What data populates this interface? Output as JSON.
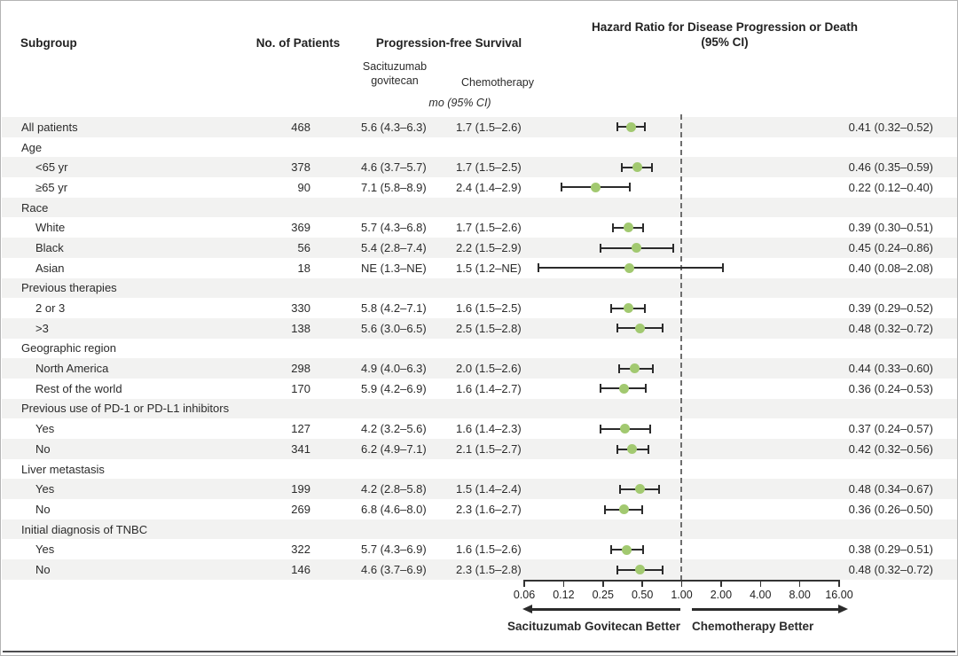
{
  "colors": {
    "marker_green": "#a2c970",
    "ci_bar": "#2b2b2b",
    "row_shade": "#f2f2f1",
    "reference_dash": "#6e6e6e"
  },
  "headers": {
    "subgroup": "Subgroup",
    "patients": "No. of Patients",
    "pfs": "Progression-free Survival",
    "hazard": "Hazard Ratio for Disease Progression or Death (95% CI)",
    "arm_sg": "Sacituzumab govitecan",
    "arm_chemo": "Chemotherapy",
    "units": "mo (95% CI)"
  },
  "chart_data": {
    "type": "scatter",
    "subtype": "forest-plot",
    "x_scale": "log2",
    "x_ticks": {
      "labels": [
        "0.06",
        "0.12",
        "0.25",
        "0.50",
        "1.00",
        "2.00",
        "4.00",
        "8.00",
        "16.00"
      ],
      "values": [
        0.0625,
        0.125,
        0.25,
        0.5,
        1,
        2,
        4,
        8,
        16
      ]
    },
    "reference_line": 1.0,
    "arrow_left_label": "Sacituzumab Govitecan Better",
    "arrow_right_label": "Chemotherapy Better",
    "rows": [
      {
        "type": "data",
        "indent": false,
        "label": "All patients",
        "patients": "468",
        "sg": "5.6 (4.3–6.3)",
        "chemo": "1.7 (1.5–2.6)",
        "hr_text": "0.41 (0.32–0.52)",
        "hr": 0.41,
        "lo": 0.32,
        "hi": 0.52
      },
      {
        "type": "group",
        "indent": false,
        "label": "Age"
      },
      {
        "type": "data",
        "indent": true,
        "label": "<65 yr",
        "patients": "378",
        "sg": "4.6 (3.7–5.7)",
        "chemo": "1.7 (1.5–2.5)",
        "hr_text": "0.46 (0.35–0.59)",
        "hr": 0.46,
        "lo": 0.35,
        "hi": 0.59
      },
      {
        "type": "data",
        "indent": true,
        "label": "≥65 yr",
        "patients": "90",
        "sg": "7.1 (5.8–8.9)",
        "chemo": "2.4 (1.4–2.9)",
        "hr_text": "0.22 (0.12–0.40)",
        "hr": 0.22,
        "lo": 0.12,
        "hi": 0.4
      },
      {
        "type": "group",
        "indent": false,
        "label": "Race"
      },
      {
        "type": "data",
        "indent": true,
        "label": "White",
        "patients": "369",
        "sg": "5.7 (4.3–6.8)",
        "chemo": "1.7 (1.5–2.6)",
        "hr_text": "0.39 (0.30–0.51)",
        "hr": 0.39,
        "lo": 0.3,
        "hi": 0.51
      },
      {
        "type": "data",
        "indent": true,
        "label": "Black",
        "patients": "56",
        "sg": "5.4 (2.8–7.4)",
        "chemo": "2.2 (1.5–2.9)",
        "hr_text": "0.45 (0.24–0.86)",
        "hr": 0.45,
        "lo": 0.24,
        "hi": 0.86
      },
      {
        "type": "data",
        "indent": true,
        "label": "Asian",
        "patients": "18",
        "sg": "NE (1.3–NE)",
        "chemo": "1.5 (1.2–NE)",
        "hr_text": "0.40 (0.08–2.08)",
        "hr": 0.4,
        "lo": 0.08,
        "hi": 2.08
      },
      {
        "type": "group",
        "indent": false,
        "label": "Previous therapies"
      },
      {
        "type": "data",
        "indent": true,
        "label": "2 or 3",
        "patients": "330",
        "sg": "5.8 (4.2–7.1)",
        "chemo": "1.6 (1.5–2.5)",
        "hr_text": "0.39 (0.29–0.52)",
        "hr": 0.39,
        "lo": 0.29,
        "hi": 0.52
      },
      {
        "type": "data",
        "indent": true,
        "label": ">3",
        "patients": "138",
        "sg": "5.6 (3.0–6.5)",
        "chemo": "2.5 (1.5–2.8)",
        "hr_text": "0.48 (0.32–0.72)",
        "hr": 0.48,
        "lo": 0.32,
        "hi": 0.72
      },
      {
        "type": "group",
        "indent": false,
        "label": "Geographic region"
      },
      {
        "type": "data",
        "indent": true,
        "label": "North America",
        "patients": "298",
        "sg": "4.9 (4.0–6.3)",
        "chemo": "2.0 (1.5–2.6)",
        "hr_text": "0.44 (0.33–0.60)",
        "hr": 0.44,
        "lo": 0.33,
        "hi": 0.6
      },
      {
        "type": "data",
        "indent": true,
        "label": "Rest of the world",
        "patients": "170",
        "sg": "5.9 (4.2–6.9)",
        "chemo": "1.6 (1.4–2.7)",
        "hr_text": "0.36 (0.24–0.53)",
        "hr": 0.36,
        "lo": 0.24,
        "hi": 0.53
      },
      {
        "type": "group",
        "indent": false,
        "label": "Previous use of PD-1 or PD-L1 inhibitors"
      },
      {
        "type": "data",
        "indent": true,
        "label": "Yes",
        "patients": "127",
        "sg": "4.2 (3.2–5.6)",
        "chemo": "1.6 (1.4–2.3)",
        "hr_text": "0.37 (0.24–0.57)",
        "hr": 0.37,
        "lo": 0.24,
        "hi": 0.57
      },
      {
        "type": "data",
        "indent": true,
        "label": "No",
        "patients": "341",
        "sg": "6.2 (4.9–7.1)",
        "chemo": "2.1 (1.5–2.7)",
        "hr_text": "0.42 (0.32–0.56)",
        "hr": 0.42,
        "lo": 0.32,
        "hi": 0.56
      },
      {
        "type": "group",
        "indent": false,
        "label": "Liver metastasis"
      },
      {
        "type": "data",
        "indent": true,
        "label": "Yes",
        "patients": "199",
        "sg": "4.2 (2.8–5.8)",
        "chemo": "1.5 (1.4–2.4)",
        "hr_text": "0.48 (0.34–0.67)",
        "hr": 0.48,
        "lo": 0.34,
        "hi": 0.67
      },
      {
        "type": "data",
        "indent": true,
        "label": "No",
        "patients": "269",
        "sg": "6.8 (4.6–8.0)",
        "chemo": "2.3 (1.6–2.7)",
        "hr_text": "0.36 (0.26–0.50)",
        "hr": 0.36,
        "lo": 0.26,
        "hi": 0.5
      },
      {
        "type": "group",
        "indent": false,
        "label": "Initial diagnosis of TNBC"
      },
      {
        "type": "data",
        "indent": true,
        "label": "Yes",
        "patients": "322",
        "sg": "5.7 (4.3–6.9)",
        "chemo": "1.6 (1.5–2.6)",
        "hr_text": "0.38 (0.29–0.51)",
        "hr": 0.38,
        "lo": 0.29,
        "hi": 0.51
      },
      {
        "type": "data",
        "indent": true,
        "label": "No",
        "patients": "146",
        "sg": "4.6 (3.7–6.9)",
        "chemo": "2.3 (1.5–2.8)",
        "hr_text": "0.48 (0.32–0.72)",
        "hr": 0.48,
        "lo": 0.32,
        "hi": 0.72
      }
    ]
  }
}
